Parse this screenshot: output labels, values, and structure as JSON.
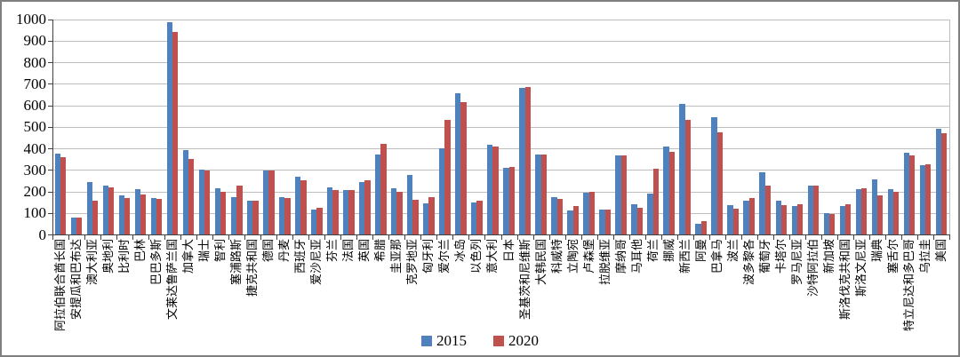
{
  "chart_data": {
    "type": "bar",
    "title": "",
    "xlabel": "",
    "ylabel": "",
    "ylim": [
      0,
      1000
    ],
    "yticks": [
      0,
      100,
      200,
      300,
      400,
      500,
      600,
      700,
      800,
      900,
      1000
    ],
    "grid": true,
    "legend_position": "bottom-center",
    "categories": [
      "阿拉伯联合酋长国",
      "安提瓜和巴布达",
      "澳大利亚",
      "奥地利",
      "比利时",
      "巴林",
      "巴巴多斯",
      "文莱达鲁萨兰国",
      "加拿大",
      "瑞士",
      "智利",
      "塞浦路斯",
      "捷克共和国",
      "德国",
      "丹麦",
      "西班牙",
      "爱沙尼亚",
      "芬兰",
      "法国",
      "英国",
      "希腊",
      "圭亚那",
      "克罗地亚",
      "匈牙利",
      "爱尔兰",
      "冰岛",
      "以色列",
      "意大利",
      "日本",
      "圣基茨和尼维斯",
      "大韩民国",
      "科威特",
      "立陶宛",
      "卢森堡",
      "拉脱维亚",
      "摩纳哥",
      "马耳他",
      "荷兰",
      "挪威",
      "新西兰",
      "阿曼",
      "巴拿马",
      "波兰",
      "波多黎各",
      "葡萄牙",
      "卡塔尔",
      "罗马尼亚",
      "沙特阿拉伯",
      "新加坡",
      "斯洛伐克共和国",
      "斯洛文尼亚",
      "瑞典",
      "塞舌尔",
      "特立尼达和多巴哥",
      "乌拉圭",
      "美国"
    ],
    "series": [
      {
        "name": "2015",
        "color": "#4F81BD",
        "values": [
          375,
          80,
          245,
          225,
          180,
          210,
          170,
          985,
          390,
          300,
          215,
          175,
          155,
          295,
          175,
          270,
          115,
          220,
          205,
          245,
          370,
          215,
          275,
          145,
          400,
          655,
          150,
          415,
          310,
          680,
          370,
          175,
          110,
          195,
          115,
          365,
          140,
          190,
          410,
          605,
          50,
          545,
          135,
          155,
          290,
          155,
          130,
          225,
          100,
          130,
          210,
          255,
          210,
          380,
          320,
          490
        ]
      },
      {
        "name": "2020",
        "color": "#C0504D",
        "values": [
          360,
          78,
          155,
          220,
          170,
          185,
          165,
          940,
          350,
          295,
          200,
          225,
          155,
          295,
          170,
          250,
          125,
          205,
          205,
          250,
          420,
          200,
          160,
          175,
          530,
          615,
          155,
          410,
          315,
          685,
          370,
          165,
          130,
          200,
          115,
          365,
          125,
          305,
          385,
          530,
          60,
          475,
          120,
          170,
          225,
          135,
          140,
          225,
          95,
          140,
          215,
          180,
          200,
          365,
          325,
          470
        ]
      }
    ],
    "style": {
      "axis_color": "#404040",
      "grid_color": "#bfbfbf",
      "plot_right_border_color": "#bfbfbf",
      "frame_border_color": "#7f7f7f",
      "background": "#ffffff"
    }
  }
}
